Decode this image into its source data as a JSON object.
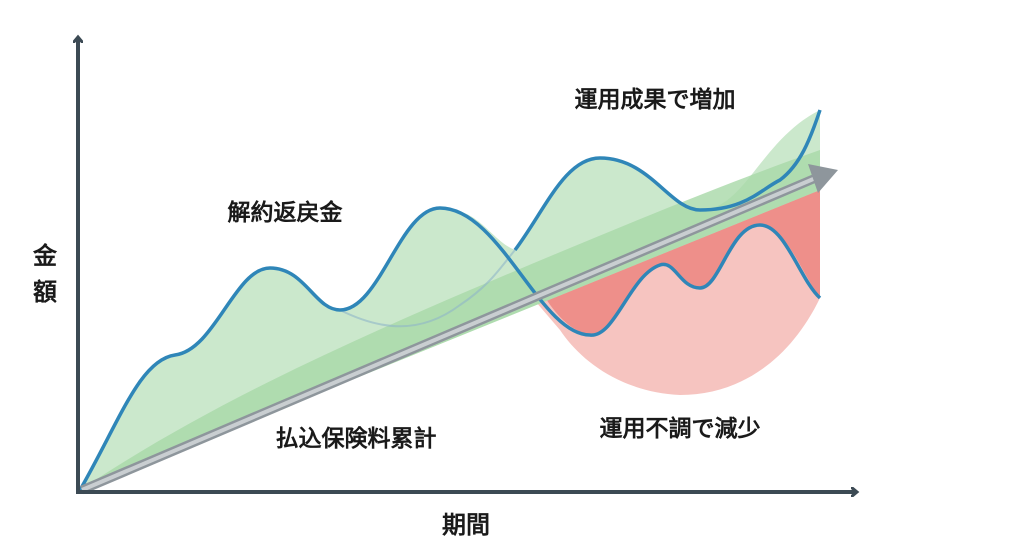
{
  "y_axis_label": [
    "金",
    "額"
  ],
  "x_axis_label": "期間",
  "labels": {
    "surrender_value": "解約返戻金",
    "premiums_total": "払込保険料累計",
    "increase": "運用成果で増加",
    "decrease": "運用不調で減少"
  }
}
